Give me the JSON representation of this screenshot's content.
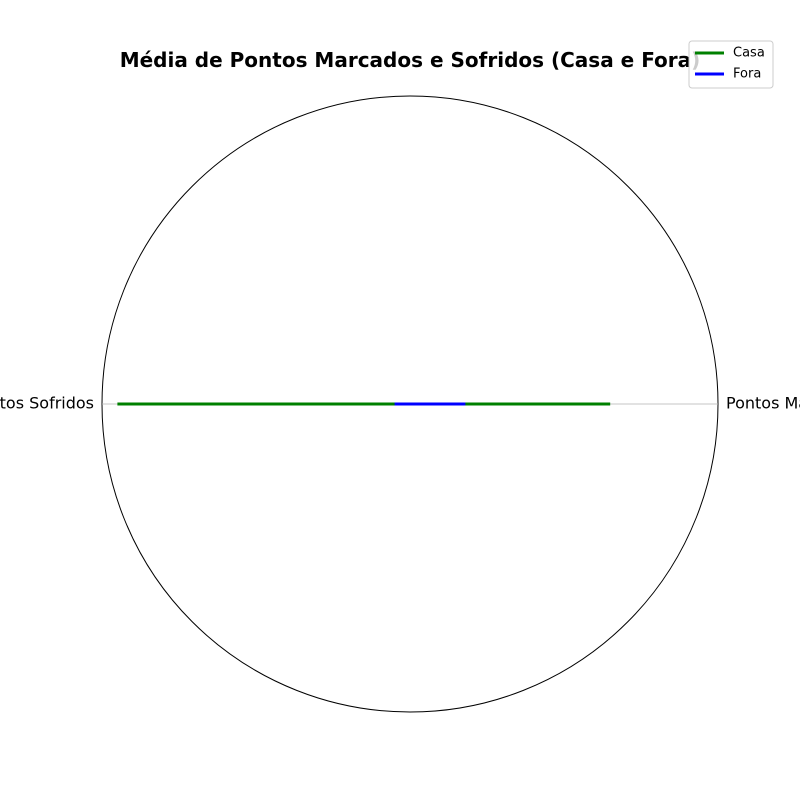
{
  "chart_data": {
    "type": "radar",
    "title": "Média de Pontos Marcados e Sofridos (Casa e Fora)",
    "categories": [
      "Pontos Marcados",
      "Pontos Sofridos"
    ],
    "series": [
      {
        "name": "Casa",
        "values": [
          0.65,
          0.95
        ],
        "color": "#008000"
      },
      {
        "name": "Fora",
        "values": [
          0.18,
          0.05
        ],
        "color": "#0000ff"
      }
    ],
    "rlim": [
      0,
      1
    ],
    "grid": false,
    "legend": {
      "position": "top-right"
    }
  }
}
